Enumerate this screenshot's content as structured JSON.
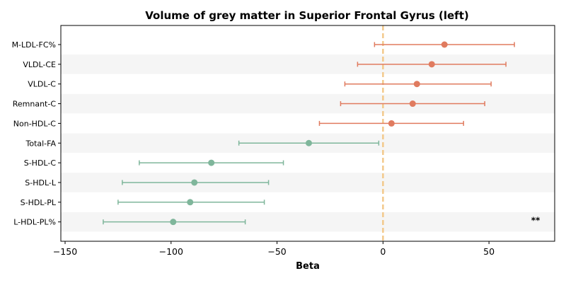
{
  "chart_data": {
    "type": "forest",
    "title": "Volume of grey matter in Superior Frontal Gyrus (left)",
    "xlabel": "Beta",
    "xlim": [
      -152,
      81
    ],
    "xticks": [
      -150,
      -100,
      -50,
      0,
      50
    ],
    "xtick_labels": [
      "−150",
      "−100",
      "−50",
      "0",
      "50"
    ],
    "reference_line": 0,
    "colors": {
      "positive": "#e07b5f",
      "negative": "#7fb69b",
      "reference": "#f3c98b",
      "band": "#f5f5f5"
    },
    "rows": [
      {
        "label": "M-LDL-FC%",
        "beta": 29,
        "lower": -4,
        "upper": 62,
        "group": "positive",
        "annotation": ""
      },
      {
        "label": "VLDL-CE",
        "beta": 23,
        "lower": -12,
        "upper": 58,
        "group": "positive",
        "annotation": ""
      },
      {
        "label": "VLDL-C",
        "beta": 16,
        "lower": -18,
        "upper": 51,
        "group": "positive",
        "annotation": ""
      },
      {
        "label": "Remnant-C",
        "beta": 14,
        "lower": -20,
        "upper": 48,
        "group": "positive",
        "annotation": ""
      },
      {
        "label": "Non-HDL-C",
        "beta": 4,
        "lower": -30,
        "upper": 38,
        "group": "positive",
        "annotation": ""
      },
      {
        "label": "Total-FA",
        "beta": -35,
        "lower": -68,
        "upper": -2,
        "group": "negative",
        "annotation": ""
      },
      {
        "label": "S-HDL-C",
        "beta": -81,
        "lower": -115,
        "upper": -47,
        "group": "negative",
        "annotation": ""
      },
      {
        "label": "S-HDL-L",
        "beta": -89,
        "lower": -123,
        "upper": -54,
        "group": "negative",
        "annotation": ""
      },
      {
        "label": "S-HDL-PL",
        "beta": -91,
        "lower": -125,
        "upper": -56,
        "group": "negative",
        "annotation": ""
      },
      {
        "label": "L-HDL-PL%",
        "beta": -99,
        "lower": -132,
        "upper": -65,
        "group": "negative",
        "annotation": "**"
      }
    ]
  }
}
